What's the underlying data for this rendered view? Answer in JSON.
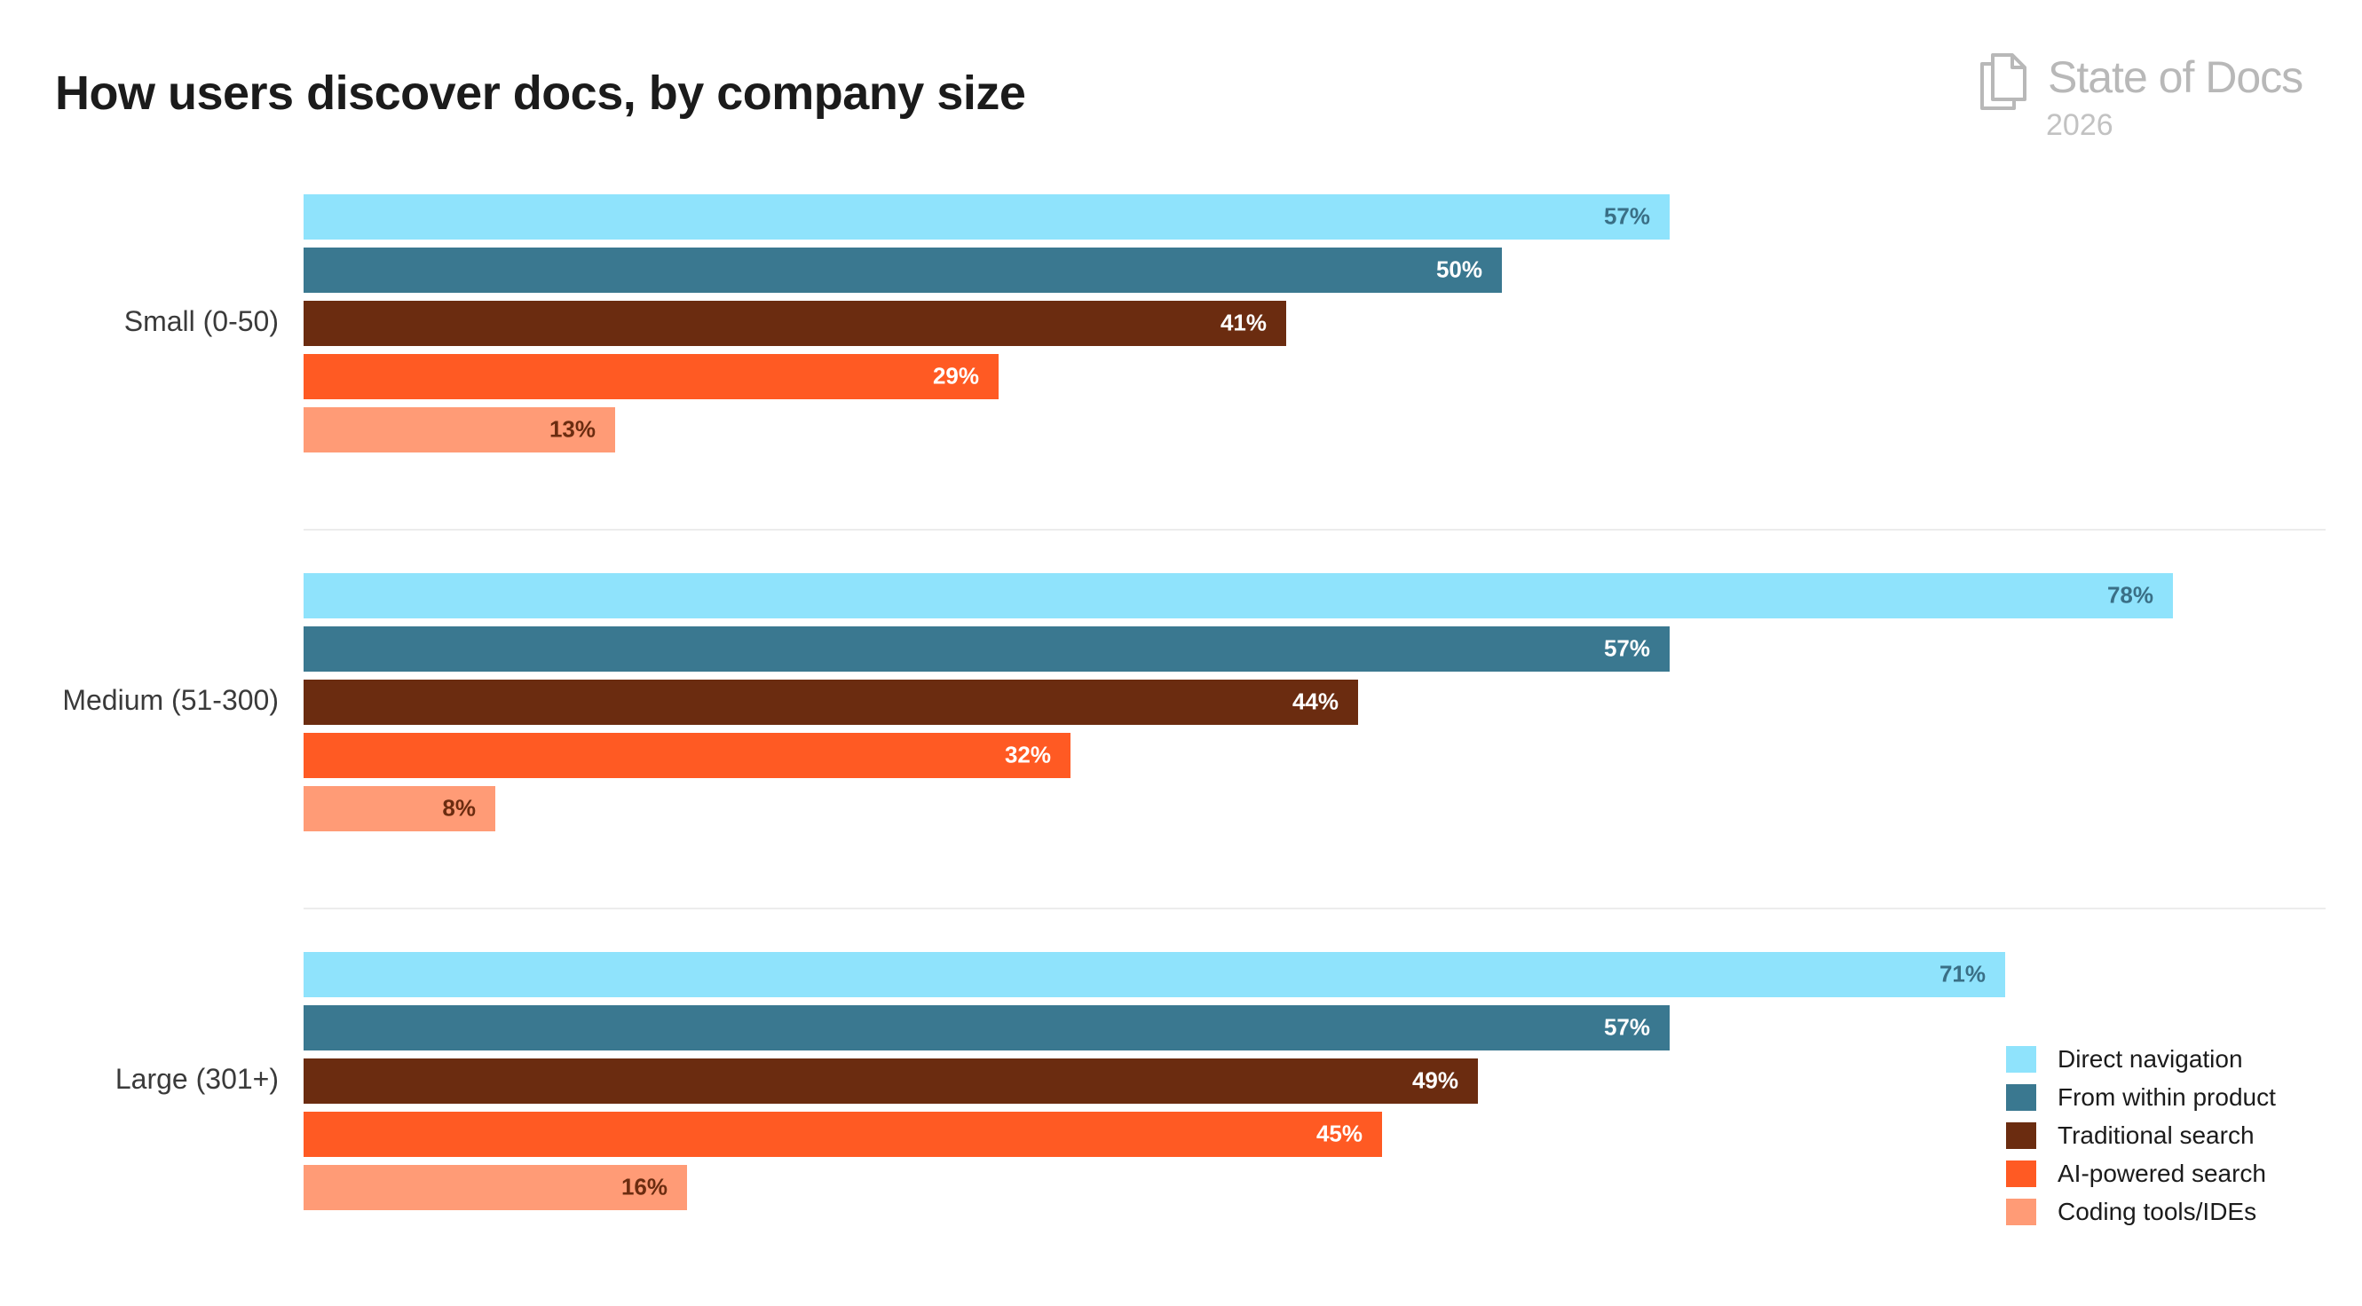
{
  "chart_data": {
    "type": "bar",
    "orientation": "horizontal",
    "title": "How users discover docs, by company size",
    "categories": [
      "Small (0-50)",
      "Medium (51-300)",
      "Large (301+)"
    ],
    "series": [
      {
        "name": "Direct navigation",
        "color": "#8fe3fc",
        "label_color": "#3a6f86",
        "values": [
          57,
          78,
          71
        ]
      },
      {
        "name": "From within product",
        "color": "#3a7890",
        "label_color": "#ffffff",
        "values": [
          50,
          57,
          57
        ]
      },
      {
        "name": "Traditional search",
        "color": "#6b2c10",
        "label_color": "#ffffff",
        "values": [
          41,
          44,
          49
        ]
      },
      {
        "name": "AI-powered search",
        "color": "#ff5a23",
        "label_color": "#ffffff",
        "values": [
          29,
          32,
          45
        ]
      },
      {
        "name": "Coding tools/IDEs",
        "color": "#ff9b76",
        "label_color": "#6b2c10",
        "values": [
          13,
          8,
          16
        ]
      }
    ],
    "value_suffix": "%",
    "xlim": [
      0,
      80
    ],
    "grid": false,
    "legend_position": "bottom-right"
  },
  "brand": {
    "name": "State of Docs",
    "year": "2026",
    "icon": "document-stack-icon"
  }
}
